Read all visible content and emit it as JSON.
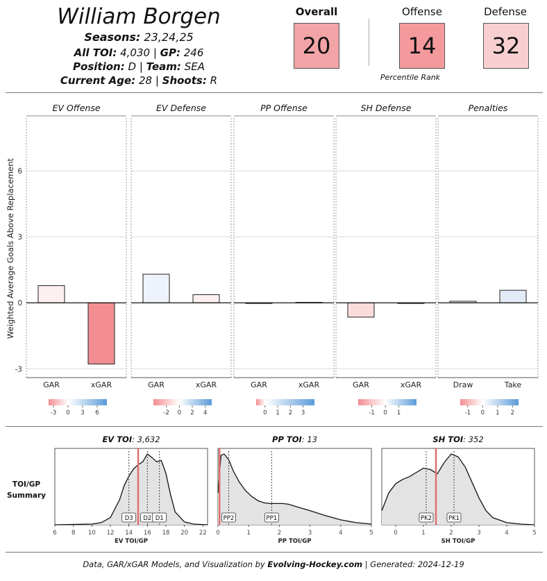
{
  "header": {
    "player_name": "William Borgen",
    "seasons_label": "Seasons",
    "seasons_value": "23,24,25",
    "toi_label": "All TOI",
    "toi_value": "4,030",
    "gp_label": "GP",
    "gp_value": "246",
    "position_label": "Position",
    "position_value": "D",
    "team_label": "Team",
    "team_value": "SEA",
    "age_label": "Current Age",
    "age_value": "28",
    "shoots_label": "Shoots",
    "shoots_value": "R"
  },
  "percentiles": {
    "overall_label": "Overall",
    "overall_value": "20",
    "offense_label": "Offense",
    "offense_value": "14",
    "defense_label": "Defense",
    "defense_value": "32",
    "note": "Percentile Rank",
    "colors": {
      "overall": "#f2a4a6",
      "offense": "#f49a9d",
      "defense": "#f8cfd1"
    }
  },
  "chart_data": [
    {
      "type": "bar",
      "ylabel": "Weighted Average Goals Above Replacement",
      "ylim": [
        -3.4,
        8.4
      ],
      "yticks": [
        -3,
        0,
        3,
        6
      ],
      "grid": true,
      "panels": [
        {
          "title": "EV Offense",
          "categories": [
            "GAR",
            "xGAR"
          ],
          "values": [
            0.78,
            -2.78
          ],
          "fills": [
            "#fdf0f0",
            "#f28e92"
          ],
          "legend": {
            "ticks": [
              "-3",
              "0",
              "3",
              "6"
            ],
            "tick_values": [
              -3,
              0,
              3,
              6
            ],
            "range": [
              -4,
              8
            ]
          }
        },
        {
          "title": "EV Defense",
          "categories": [
            "GAR",
            "xGAR"
          ],
          "values": [
            1.3,
            0.37
          ],
          "fills": [
            "#eef3fb",
            "#fdf0ef"
          ],
          "legend": {
            "ticks": [
              "-2",
              "0",
              "2",
              "4"
            ],
            "tick_values": [
              -2,
              0,
              2,
              4
            ],
            "range": [
              -4,
              5
            ]
          }
        },
        {
          "title": "PP Offense",
          "categories": [
            "GAR",
            "xGAR"
          ],
          "values": [
            -0.03,
            0.02
          ],
          "fills": [
            "#ffffff",
            "#ffffff"
          ],
          "legend": {
            "ticks": [
              "0",
              "1",
              "2",
              "3"
            ],
            "tick_values": [
              0,
              1,
              2,
              3
            ],
            "range": [
              -0.7,
              3.9
            ]
          }
        },
        {
          "title": "SH Defense",
          "categories": [
            "GAR",
            "xGAR"
          ],
          "values": [
            -0.65,
            -0.03
          ],
          "fills": [
            "#fbdcdc",
            "#ffffff"
          ],
          "legend": {
            "ticks": [
              "-1",
              "0",
              "1"
            ],
            "tick_values": [
              -1,
              0,
              1
            ],
            "range": [
              -2,
              2.3
            ]
          }
        },
        {
          "title": "Penalties",
          "categories": [
            "Draw",
            "Take"
          ],
          "values": [
            0.07,
            0.57
          ],
          "fills": [
            "#fbfbfb",
            "#e3ebf6"
          ],
          "legend": {
            "ticks": [
              "-1",
              "0",
              "1",
              "2"
            ],
            "tick_values": [
              -1,
              0,
              1,
              2
            ],
            "range": [
              -1.5,
              2.4
            ]
          }
        }
      ]
    },
    {
      "type": "area",
      "title": "TOI/GP Summary",
      "panels": [
        {
          "title_label": "EV TOI",
          "title_value": "3,632",
          "xlabel": "EV TOI/GP",
          "xlim": [
            6,
            22.5
          ],
          "xticks": [
            6,
            8,
            10,
            12,
            14,
            16,
            18,
            20,
            22
          ],
          "density_x": [
            6,
            10,
            11,
            12,
            13,
            13.5,
            14,
            14.5,
            15,
            15.5,
            16,
            16.5,
            17,
            17.5,
            18,
            18.5,
            19,
            20,
            21,
            22.5
          ],
          "density_y": [
            0,
            0.01,
            0.03,
            0.1,
            0.35,
            0.55,
            0.68,
            0.78,
            0.84,
            0.88,
            0.99,
            0.94,
            0.88,
            0.9,
            0.72,
            0.42,
            0.18,
            0.04,
            0.01,
            0
          ],
          "player_value": 15.0,
          "markers": [
            {
              "label": "D3",
              "x": 14.0
            },
            {
              "label": "D2",
              "x": 16.0
            },
            {
              "label": "D1",
              "x": 17.3
            }
          ]
        },
        {
          "title_label": "PP TOI",
          "title_value": "13",
          "xlabel": "PP TOI/GP",
          "xlim": [
            0,
            5
          ],
          "xticks": [
            0,
            1,
            2,
            3,
            4,
            5
          ],
          "density_x": [
            0,
            0.1,
            0.2,
            0.35,
            0.5,
            0.7,
            0.9,
            1.1,
            1.3,
            1.5,
            1.7,
            1.9,
            2.1,
            2.3,
            2.6,
            3,
            3.5,
            4,
            4.5,
            5
          ],
          "density_y": [
            0.45,
            0.98,
            1.0,
            0.92,
            0.76,
            0.6,
            0.48,
            0.4,
            0.34,
            0.31,
            0.3,
            0.3,
            0.3,
            0.29,
            0.25,
            0.2,
            0.13,
            0.07,
            0.03,
            0.01
          ],
          "player_value": 0.05,
          "markers": [
            {
              "label": "PP2",
              "x": 0.35
            },
            {
              "label": "PP1",
              "x": 1.75
            }
          ]
        },
        {
          "title_label": "SH TOI",
          "title_value": "352",
          "xlabel": "SH TOI/GP",
          "xlim": [
            -0.5,
            5
          ],
          "xticks": [
            0,
            1,
            2,
            3,
            4,
            5
          ],
          "density_x": [
            -0.5,
            -0.25,
            0,
            0.25,
            0.5,
            0.75,
            1,
            1.25,
            1.5,
            1.75,
            2,
            2.25,
            2.5,
            2.75,
            3,
            3.25,
            3.5,
            4,
            4.5,
            5
          ],
          "density_y": [
            0.2,
            0.45,
            0.58,
            0.64,
            0.68,
            0.74,
            0.8,
            0.78,
            0.72,
            0.88,
            1.0,
            0.96,
            0.82,
            0.6,
            0.38,
            0.2,
            0.1,
            0.03,
            0.01,
            0
          ],
          "player_value": 1.45,
          "markers": [
            {
              "label": "PK2",
              "x": 1.1
            },
            {
              "label": "PK1",
              "x": 2.1
            }
          ]
        }
      ]
    }
  ],
  "footer": {
    "prefix": "Data, GAR/xGAR Models, and Visualization by ",
    "brand": "Evolving-Hockey.com",
    "suffix": " | Generated: 2024-12-19"
  }
}
